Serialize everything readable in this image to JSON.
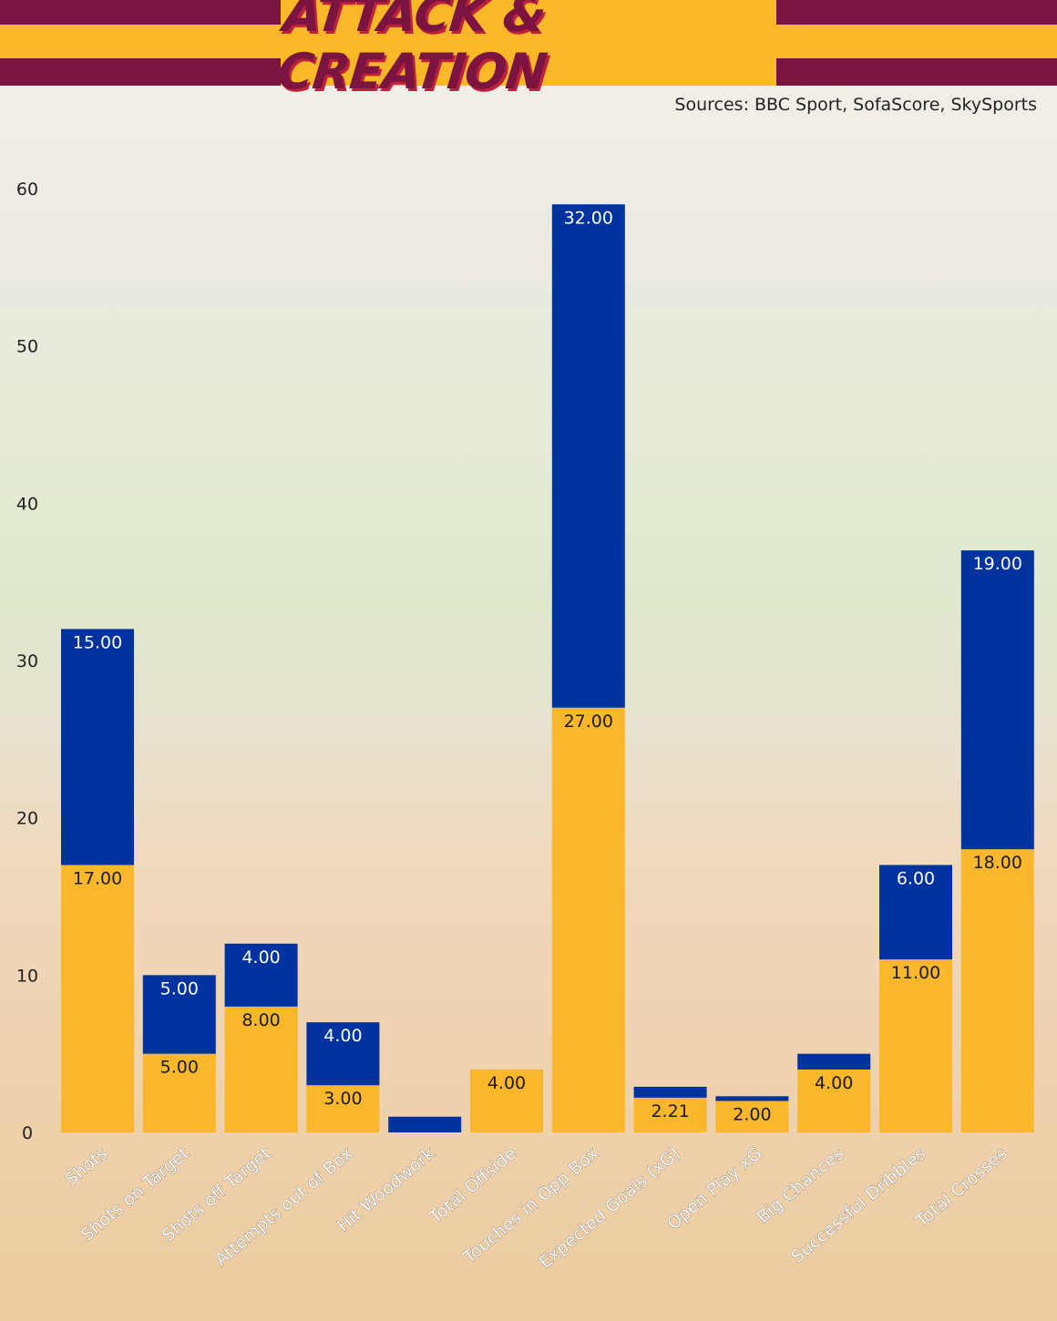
{
  "header": {
    "title": "ATTACK & CREATION",
    "sources": "Sources: BBC Sport, SofaScore, SkySports"
  },
  "colors": {
    "brand_maroon": "#7b1440",
    "brand_amber": "#f8b828",
    "series_bottom": "#f9b72b",
    "series_top": "#0033a0"
  },
  "chart_data": {
    "type": "bar",
    "stacked": true,
    "title": "ATTACK & CREATION",
    "xlabel": "",
    "ylabel": "",
    "ylim": [
      0,
      60
    ],
    "yticks": [
      0,
      10,
      20,
      30,
      40,
      50,
      60
    ],
    "grid": false,
    "legend": "none",
    "categories": [
      "Shots",
      "Shots on Target",
      "Shots off Target",
      "Attempts out of Box",
      "Hit Woodwork",
      "Total Offside",
      "Touches in Opp Box",
      "Expected Goals (xG)",
      "Open Play xG",
      "Big Chances",
      "Successful Dribbles",
      "Total Crosses"
    ],
    "series": [
      {
        "values": [
          17,
          5,
          8,
          3,
          0,
          4,
          27,
          2.21,
          2,
          4,
          11,
          18
        ],
        "labels": [
          "17.00",
          "5.00",
          "8.00",
          "3.00",
          "",
          "4.00",
          "27.00",
          "2.21",
          "2.00",
          "4.00",
          "11.00",
          "18.00"
        ],
        "color": "#f9b72b"
      },
      {
        "values": [
          15,
          5,
          4,
          4,
          1,
          0,
          32,
          0.69,
          0.3,
          1,
          6,
          19
        ],
        "labels": [
          "15.00",
          "5.00",
          "4.00",
          "4.00",
          "",
          "",
          "32.00",
          "",
          "",
          "",
          "6.00",
          "19.00"
        ],
        "color": "#0033a0"
      }
    ]
  }
}
